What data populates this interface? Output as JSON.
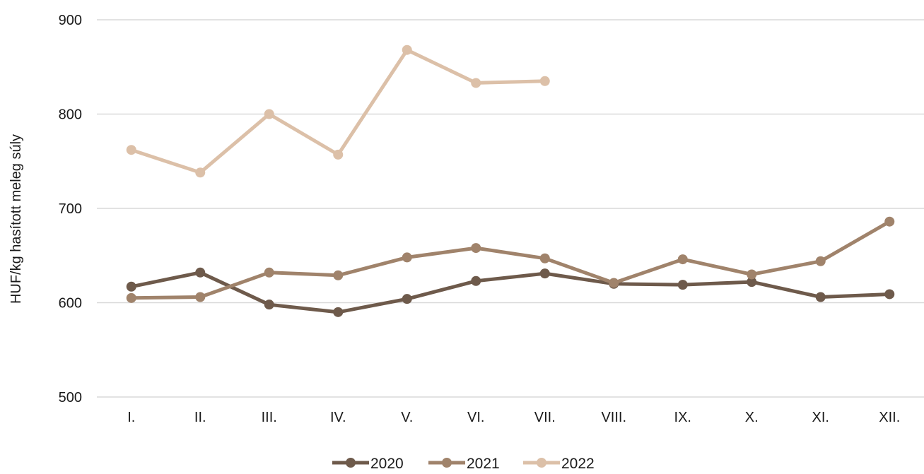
{
  "chart_data": {
    "type": "line",
    "title": "",
    "xlabel": "",
    "ylabel": "HUF/kg hasított meleg súly",
    "categories": [
      "I.",
      "II.",
      "III.",
      "IV.",
      "V.",
      "VI.",
      "VII.",
      "VIII.",
      "IX.",
      "X.",
      "XI.",
      "XII."
    ],
    "ylim": [
      500,
      900
    ],
    "yticks": [
      500,
      600,
      700,
      800,
      900
    ],
    "grid": true,
    "legend": "bottom",
    "series": [
      {
        "name": "2020",
        "color": "#6e5a4b",
        "values": [
          617,
          632,
          598,
          590,
          604,
          623,
          631,
          620,
          619,
          622,
          606,
          609
        ]
      },
      {
        "name": "2021",
        "color": "#a0836b",
        "values": [
          605,
          606,
          632,
          629,
          648,
          658,
          647,
          621,
          646,
          630,
          644,
          686
        ]
      },
      {
        "name": "2022",
        "color": "#dcc0a8",
        "values": [
          762,
          738,
          800,
          757,
          868,
          833,
          835,
          null,
          null,
          null,
          null,
          null
        ]
      }
    ]
  }
}
